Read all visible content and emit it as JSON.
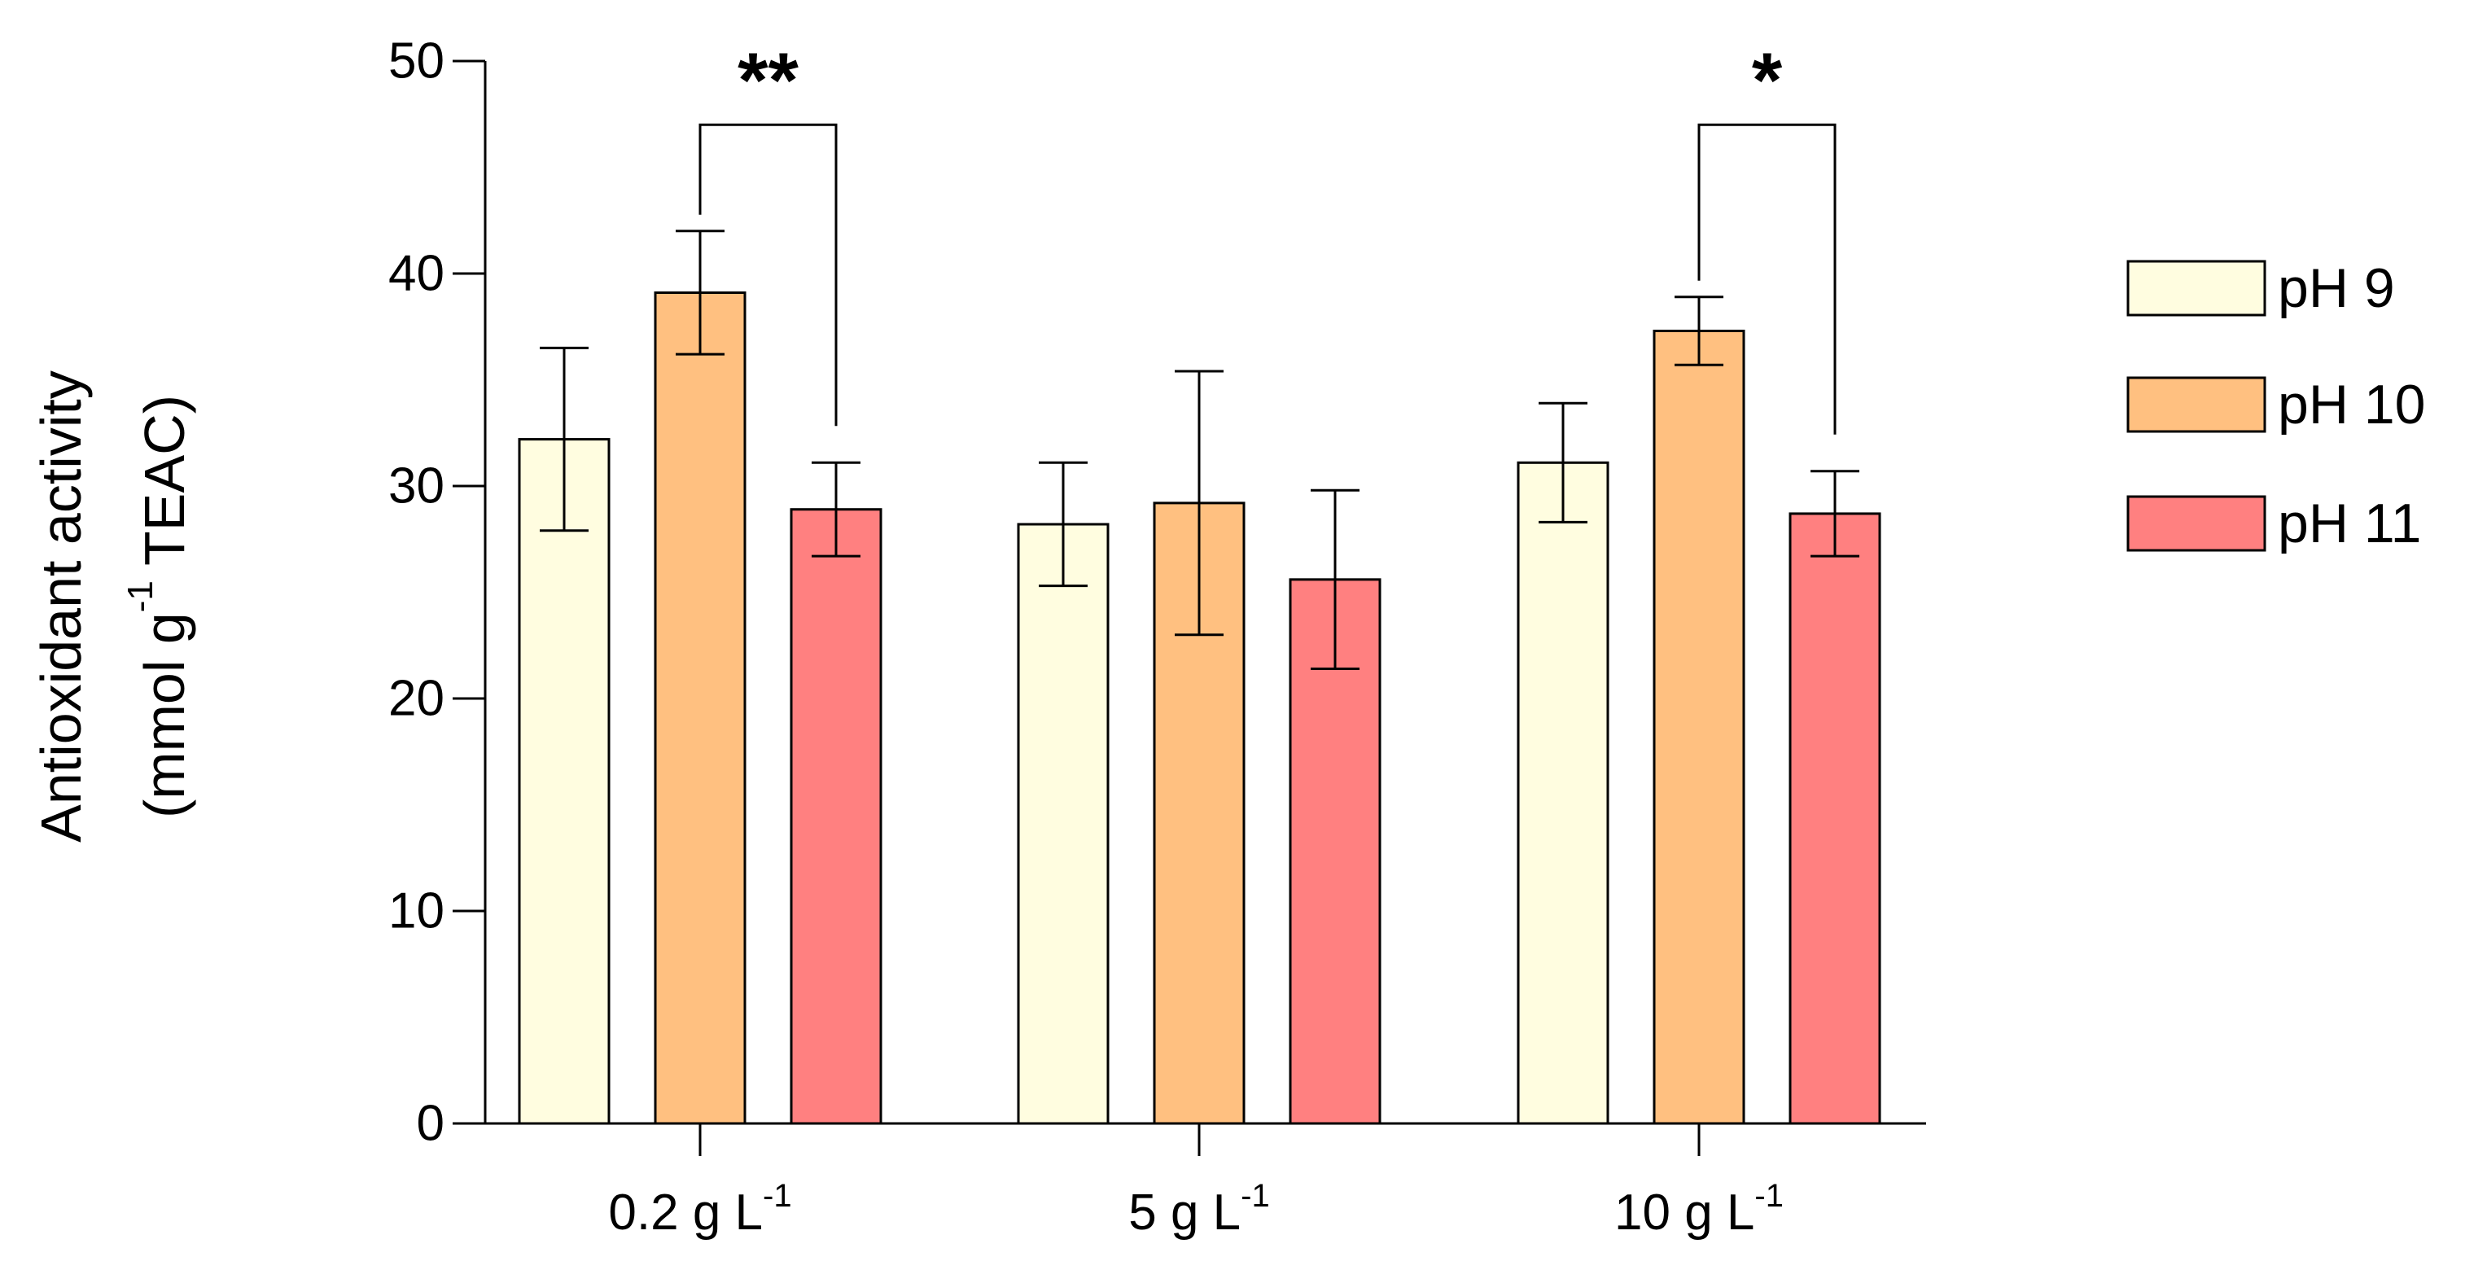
{
  "chart_data": {
    "type": "bar",
    "title": "",
    "xlabel": "",
    "ylabel_line1": "Antioxidant activity",
    "ylabel_line2": "(mmol g-1 TEAC)",
    "ylabel_parts": {
      "prefix": "(mmol g",
      "superscript": "-1",
      "suffix": " TEAC)"
    },
    "ylim": [
      0,
      50
    ],
    "yticks": [
      0,
      10,
      20,
      30,
      40,
      50
    ],
    "ytick_labels": [
      "0",
      "10",
      "20",
      "30",
      "40",
      "50"
    ],
    "grid": false,
    "categories": [
      {
        "label": "0.2 g L-1",
        "base": "0.2 g L",
        "sup": "-1"
      },
      {
        "label": "5 g L-1",
        "base": "5 g L",
        "sup": "-1"
      },
      {
        "label": "10 g L-1",
        "base": "10 g L",
        "sup": "-1"
      }
    ],
    "series": [
      {
        "name": "pH 9",
        "color": "#FFFDE0",
        "values": [
          32.2,
          28.2,
          31.1
        ],
        "errors": [
          4.3,
          2.9,
          2.8
        ]
      },
      {
        "name": "pH 10",
        "color": "#FFC080",
        "values": [
          39.1,
          29.2,
          37.3
        ],
        "errors": [
          2.9,
          6.2,
          1.6
        ]
      },
      {
        "name": "pH 11",
        "color": "#FF8080",
        "values": [
          28.9,
          25.6,
          28.7
        ],
        "errors": [
          2.2,
          4.2,
          2.0
        ]
      }
    ],
    "legend": {
      "placement": "right"
    },
    "significance": [
      {
        "category_index": 0,
        "from_series": 1,
        "to_series": 2,
        "label": "**",
        "y": 47
      },
      {
        "category_index": 2,
        "from_series": 1,
        "to_series": 2,
        "label": "*",
        "y": 47
      }
    ]
  }
}
